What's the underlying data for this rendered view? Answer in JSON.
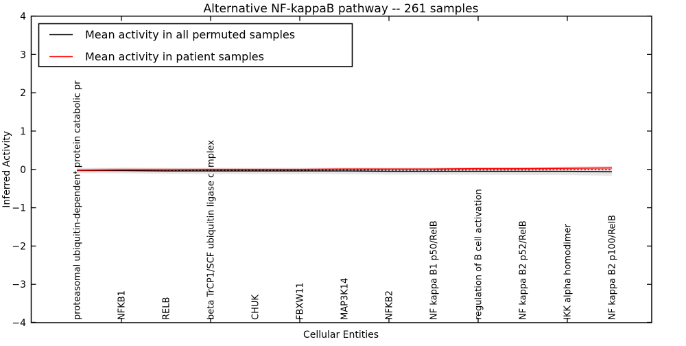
{
  "title": "Alternative NF-kappaB pathway -- 261 samples",
  "xlabel": "Cellular Entities",
  "ylabel": "Inferred Activity",
  "legend": {
    "items": [
      {
        "label": "Mean activity in all permuted samples",
        "color": "#000000"
      },
      {
        "label": "Mean activity in patient samples",
        "color": "#ff0000"
      }
    ]
  },
  "yticks": [
    "4",
    "3",
    "2",
    "1",
    "0",
    "−1",
    "−2",
    "−3",
    "−4"
  ],
  "entities": [
    "proteasomal ubiquitin-dependent protein catabolic pr",
    "NFKB1",
    "RELB",
    "beta TrCP1/SCF ubiquitin ligase complex",
    "CHUK",
    "FBXW11",
    "MAP3K14",
    "NFKB2",
    "NF kappa B1 p50/RelB",
    "regulation of B cell activation",
    "NF kappa B2 p52/RelB",
    "IKK alpha homodimer",
    "NF kappa B2 p100/RelB"
  ],
  "colors": {
    "permuted_line": "#000000",
    "patient_line": "#ff0000",
    "permuted_band": "#e6e6e6",
    "patient_band": "rgba(255,0,0,0.16)",
    "frame": "#000000"
  },
  "chart_data": {
    "type": "line",
    "title": "Alternative NF-kappaB pathway -- 261 samples",
    "xlabel": "Cellular Entities",
    "ylabel": "Inferred Activity",
    "ylim": [
      -4,
      4
    ],
    "grid": false,
    "legend_position": "upper left",
    "x_categories": [
      "proteasomal ubiquitin-dependent protein catabolic pr",
      "NFKB1",
      "RELB",
      "beta TrCP1/SCF ubiquitin ligase complex",
      "CHUK",
      "FBXW11",
      "MAP3K14",
      "NFKB2",
      "NF kappa B1 p50/RelB",
      "regulation of B cell activation",
      "NF kappa B2 p52/RelB",
      "IKK alpha homodimer",
      "NF kappa B2 p100/RelB"
    ],
    "series": [
      {
        "name": "Mean activity in all permuted samples",
        "color": "#000000",
        "style": "solid",
        "values": [
          -0.03,
          -0.03,
          -0.04,
          -0.04,
          -0.04,
          -0.04,
          -0.04,
          -0.05,
          -0.05,
          -0.05,
          -0.05,
          -0.05,
          -0.06
        ]
      },
      {
        "name": "Mean activity in patient samples",
        "color": "#ff0000",
        "style": "solid",
        "values": [
          -0.02,
          -0.01,
          -0.01,
          0.0,
          0.0,
          0.0,
          0.01,
          0.01,
          0.01,
          0.02,
          0.02,
          0.03,
          0.04
        ]
      }
    ],
    "bands": {
      "permuted_band_halfwidth": [
        0.07,
        0.072,
        0.075,
        0.077,
        0.08,
        0.082,
        0.084,
        0.086,
        0.088,
        0.091,
        0.094,
        0.098,
        0.103
      ],
      "patient_band_halfwidth": [
        0.03,
        0.05,
        0.048,
        0.036,
        0.032,
        0.03,
        0.03,
        0.03,
        0.03,
        0.034,
        0.038,
        0.044,
        0.046
      ]
    }
  }
}
